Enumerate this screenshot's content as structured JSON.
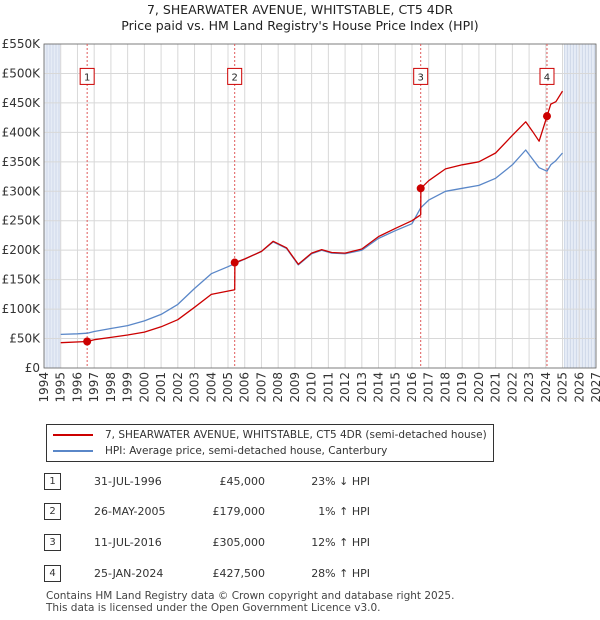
{
  "title": "7, SHEARWATER AVENUE, WHITSTABLE, CT5 4DR",
  "subtitle": "Price paid vs. HM Land Registry's House Price Index (HPI)",
  "colors": {
    "price": "#cc0000",
    "hpi": "#5a87c8",
    "grid": "#d8d8d8",
    "band": "#e6ecf6",
    "vline": "#e05a5a"
  },
  "chart_data": {
    "type": "line",
    "xlim": [
      1994,
      2027
    ],
    "ylim": [
      0,
      550000
    ],
    "x_ticks": [
      "1994",
      "1995",
      "1996",
      "1997",
      "1998",
      "1999",
      "2000",
      "2001",
      "2002",
      "2003",
      "2004",
      "2005",
      "2006",
      "2007",
      "2008",
      "2009",
      "2010",
      "2011",
      "2012",
      "2013",
      "2014",
      "2015",
      "2016",
      "2017",
      "2018",
      "2019",
      "2020",
      "2021",
      "2022",
      "2023",
      "2024",
      "2025",
      "2026",
      "2027"
    ],
    "y_ticks": [
      {
        "v": 0,
        "label": "£0"
      },
      {
        "v": 50000,
        "label": "£50K"
      },
      {
        "v": 100000,
        "label": "£100K"
      },
      {
        "v": 150000,
        "label": "£150K"
      },
      {
        "v": 200000,
        "label": "£200K"
      },
      {
        "v": 250000,
        "label": "£250K"
      },
      {
        "v": 300000,
        "label": "£300K"
      },
      {
        "v": 350000,
        "label": "£350K"
      },
      {
        "v": 400000,
        "label": "£400K"
      },
      {
        "v": 450000,
        "label": "£450K"
      },
      {
        "v": 500000,
        "label": "£500K"
      },
      {
        "v": 550000,
        "label": "£550K"
      }
    ],
    "shaded_ranges": [
      [
        1994,
        1995.0
      ],
      [
        2025.1,
        2027
      ]
    ],
    "series": [
      {
        "name": "7, SHEARWATER AVENUE, WHITSTABLE, CT5 4DR (semi-detached house)",
        "x": [
          1995.0,
          1996.58,
          1997,
          1998,
          1999,
          2000,
          2001,
          2002,
          2003,
          2004,
          2005.4,
          2005.41,
          2006,
          2007,
          2007.7,
          2008.5,
          2009.2,
          2010,
          2010.6,
          2011.2,
          2012,
          2013,
          2014,
          2015,
          2016,
          2016.52,
          2016.53,
          2017,
          2018,
          2019,
          2020,
          2021,
          2022,
          2022.8,
          2023.2,
          2023.6,
          2024.07,
          2024.3,
          2024.6,
          2025.0
        ],
        "y": [
          43000,
          45000,
          48000,
          52000,
          56000,
          61000,
          70000,
          82000,
          103000,
          125000,
          133000,
          179000,
          185000,
          198000,
          215000,
          204000,
          176000,
          195000,
          201000,
          196000,
          195000,
          202000,
          223000,
          237000,
          250000,
          260000,
          305000,
          318000,
          338000,
          345000,
          350000,
          365000,
          395000,
          418000,
          402000,
          385000,
          427500,
          448000,
          452000,
          470000
        ]
      },
      {
        "name": "HPI: Average price, semi-detached house, Canterbury",
        "x": [
          1995.0,
          1996,
          1996.58,
          1997,
          1998,
          1999,
          2000,
          2001,
          2002,
          2003,
          2004,
          2005,
          2005.4,
          2006,
          2007,
          2007.7,
          2008.5,
          2009.2,
          2010,
          2010.6,
          2011.2,
          2012,
          2013,
          2014,
          2015,
          2016,
          2016.52,
          2017,
          2018,
          2019,
          2020,
          2021,
          2022,
          2022.8,
          2023.2,
          2023.6,
          2024.07,
          2024.3,
          2024.6,
          2025.0
        ],
        "y": [
          57000,
          58000,
          59000,
          62000,
          67000,
          72000,
          80000,
          91000,
          108000,
          135000,
          160000,
          172000,
          177000,
          185000,
          198000,
          214000,
          203000,
          175000,
          194000,
          200000,
          195000,
          194000,
          200000,
          220000,
          233000,
          245000,
          272000,
          285000,
          300000,
          305000,
          310000,
          322000,
          345000,
          370000,
          355000,
          340000,
          334000,
          345000,
          352000,
          365000
        ]
      }
    ],
    "sales": [
      {
        "label": "1",
        "x": 1996.58,
        "y": 45000
      },
      {
        "label": "2",
        "x": 2005.4,
        "y": 179000
      },
      {
        "label": "3",
        "x": 2016.52,
        "y": 305000
      },
      {
        "label": "4",
        "x": 2024.07,
        "y": 427500
      }
    ],
    "sale_marker_y": 495000
  },
  "legend": {
    "price_label": "7, SHEARWATER AVENUE, WHITSTABLE, CT5 4DR (semi-detached house)",
    "hpi_label": "HPI: Average price, semi-detached house, Canterbury"
  },
  "transactions": [
    {
      "num": "1",
      "date": "31-JUL-1996",
      "price": "£45,000",
      "hpi": "23% ↓ HPI"
    },
    {
      "num": "2",
      "date": "26-MAY-2005",
      "price": "£179,000",
      "hpi": "1% ↑ HPI"
    },
    {
      "num": "3",
      "date": "11-JUL-2016",
      "price": "£305,000",
      "hpi": "12% ↑ HPI"
    },
    {
      "num": "4",
      "date": "25-JAN-2024",
      "price": "£427,500",
      "hpi": "28% ↑ HPI"
    }
  ],
  "footer": {
    "line1": "Contains HM Land Registry data © Crown copyright and database right 2025.",
    "line2": "This data is licensed under the Open Government Licence v3.0."
  }
}
